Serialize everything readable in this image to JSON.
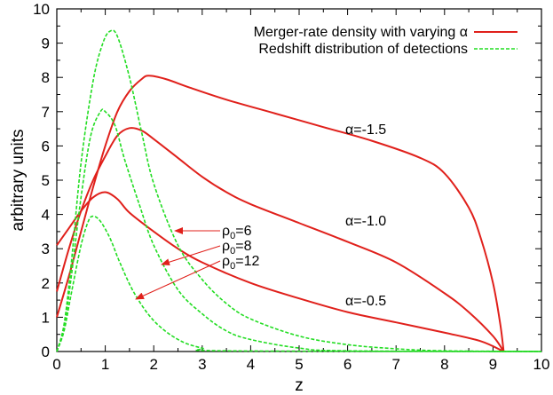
{
  "chart_data": {
    "type": "line",
    "title": "",
    "xlabel": "z",
    "ylabel": "arbitrary units",
    "xlim": [
      0,
      10
    ],
    "ylim": [
      0,
      10
    ],
    "x_ticks": [
      "0",
      "1",
      "2",
      "3",
      "4",
      "5",
      "6",
      "7",
      "8",
      "9",
      "10"
    ],
    "y_ticks": [
      "0",
      "1",
      "2",
      "3",
      "4",
      "5",
      "6",
      "7",
      "8",
      "9",
      "10"
    ],
    "grid": false,
    "legend": {
      "placement": "top-right",
      "entries": [
        {
          "label": "Merger-rate density with varying α",
          "color": "#e0201b",
          "style": "solid"
        },
        {
          "label": "Redshift distribution of detections",
          "color": "#22dd22",
          "style": "dashed"
        }
      ]
    },
    "series": [
      {
        "group": "Merger-rate density with varying α",
        "annotation": "α=-1.5",
        "color": "#e0201b",
        "style": "solid",
        "points": [
          [
            0,
            1.0
          ],
          [
            0.25,
            2.2
          ],
          [
            0.5,
            3.5
          ],
          [
            0.75,
            4.8
          ],
          [
            1.0,
            6.0
          ],
          [
            1.25,
            7.0
          ],
          [
            1.5,
            7.6
          ],
          [
            1.75,
            7.95
          ],
          [
            1.9,
            8.05
          ],
          [
            2.25,
            7.95
          ],
          [
            2.75,
            7.7
          ],
          [
            3.5,
            7.35
          ],
          [
            4.5,
            6.95
          ],
          [
            5.5,
            6.55
          ],
          [
            6.5,
            6.15
          ],
          [
            7.5,
            5.65
          ],
          [
            8.0,
            5.2
          ],
          [
            8.5,
            4.2
          ],
          [
            8.75,
            3.3
          ],
          [
            9.0,
            2.0
          ],
          [
            9.15,
            0.8
          ],
          [
            9.22,
            0
          ]
        ]
      },
      {
        "group": "Merger-rate density with varying α",
        "annotation": "α=-1.0",
        "color": "#e0201b",
        "style": "solid",
        "points": [
          [
            0,
            1.75
          ],
          [
            0.25,
            3.0
          ],
          [
            0.5,
            4.1
          ],
          [
            0.75,
            5.0
          ],
          [
            1.0,
            5.7
          ],
          [
            1.25,
            6.3
          ],
          [
            1.5,
            6.52
          ],
          [
            1.75,
            6.45
          ],
          [
            2.0,
            6.2
          ],
          [
            2.5,
            5.65
          ],
          [
            3.0,
            5.1
          ],
          [
            3.5,
            4.65
          ],
          [
            4.0,
            4.3
          ],
          [
            5.0,
            3.75
          ],
          [
            6.0,
            3.2
          ],
          [
            7.0,
            2.6
          ],
          [
            8.0,
            1.7
          ],
          [
            8.5,
            1.15
          ],
          [
            9.0,
            0.45
          ],
          [
            9.22,
            0
          ]
        ]
      },
      {
        "group": "Merger-rate density with varying α",
        "annotation": "α=-0.5",
        "color": "#e0201b",
        "style": "solid",
        "points": [
          [
            0,
            3.1
          ],
          [
            0.25,
            3.6
          ],
          [
            0.5,
            4.1
          ],
          [
            0.75,
            4.5
          ],
          [
            1.0,
            4.65
          ],
          [
            1.25,
            4.45
          ],
          [
            1.5,
            4.05
          ],
          [
            2.0,
            3.5
          ],
          [
            2.5,
            3.0
          ],
          [
            3.0,
            2.6
          ],
          [
            4.0,
            2.0
          ],
          [
            5.0,
            1.55
          ],
          [
            6.0,
            1.15
          ],
          [
            7.0,
            0.85
          ],
          [
            8.0,
            0.55
          ],
          [
            8.75,
            0.3
          ],
          [
            9.22,
            0
          ]
        ]
      },
      {
        "group": "Redshift distribution of detections",
        "annotation": "ρ0=12",
        "color": "#22dd22",
        "style": "dashed",
        "points": [
          [
            0,
            0
          ],
          [
            0.15,
            0.8
          ],
          [
            0.3,
            2.6
          ],
          [
            0.5,
            5.5
          ],
          [
            0.75,
            7.9
          ],
          [
            0.95,
            9.0
          ],
          [
            1.1,
            9.35
          ],
          [
            1.25,
            9.2
          ],
          [
            1.5,
            8.0
          ],
          [
            1.75,
            6.4
          ],
          [
            2.0,
            4.9
          ],
          [
            2.5,
            3.1
          ],
          [
            3.0,
            2.1
          ],
          [
            3.5,
            1.4
          ],
          [
            4.0,
            0.95
          ],
          [
            5.0,
            0.45
          ],
          [
            6.0,
            0.2
          ],
          [
            7.0,
            0.08
          ],
          [
            8.0,
            0.02
          ],
          [
            10.0,
            0
          ]
        ]
      },
      {
        "group": "Redshift distribution of detections",
        "annotation": "ρ0=8",
        "color": "#22dd22",
        "style": "dashed",
        "points": [
          [
            0,
            0
          ],
          [
            0.15,
            0.7
          ],
          [
            0.3,
            2.2
          ],
          [
            0.5,
            4.5
          ],
          [
            0.7,
            6.3
          ],
          [
            0.9,
            7.0
          ],
          [
            1.0,
            7.0
          ],
          [
            1.2,
            6.6
          ],
          [
            1.4,
            5.6
          ],
          [
            1.7,
            4.3
          ],
          [
            2.0,
            3.1
          ],
          [
            2.5,
            1.8
          ],
          [
            3.0,
            1.1
          ],
          [
            3.5,
            0.6
          ],
          [
            4.0,
            0.35
          ],
          [
            5.0,
            0.1
          ],
          [
            6.0,
            0.02
          ],
          [
            10.0,
            0
          ]
        ]
      },
      {
        "group": "Redshift distribution of detections",
        "annotation": "ρ0=6",
        "color": "#22dd22",
        "style": "dashed",
        "points": [
          [
            0,
            0
          ],
          [
            0.15,
            0.6
          ],
          [
            0.3,
            1.7
          ],
          [
            0.5,
            3.1
          ],
          [
            0.65,
            3.8
          ],
          [
            0.75,
            3.95
          ],
          [
            0.9,
            3.8
          ],
          [
            1.1,
            3.3
          ],
          [
            1.3,
            2.6
          ],
          [
            1.6,
            1.7
          ],
          [
            2.0,
            0.9
          ],
          [
            2.5,
            0.35
          ],
          [
            3.0,
            0.1
          ],
          [
            3.5,
            0.02
          ],
          [
            10.0,
            0
          ]
        ]
      }
    ],
    "annotations": {
      "alpha_m15": "α=-1.5",
      "alpha_m10": "α=-1.0",
      "alpha_m05": "α=-0.5",
      "rho_6": {
        "symbol": "ρ",
        "sub": "0",
        "text": "=6"
      },
      "rho_8": {
        "symbol": "ρ",
        "sub": "0",
        "text": "=8"
      },
      "rho_12": {
        "symbol": "ρ",
        "sub": "0",
        "text": "=12"
      }
    }
  }
}
